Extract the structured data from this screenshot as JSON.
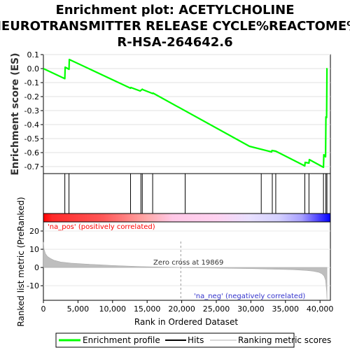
{
  "title_lines": [
    "Enrichment plot: ACETYLCHOLINE",
    "NEUROTRANSMITTER RELEASE CYCLE%REACTOME%",
    "R-HSA-264642.6"
  ],
  "colors": {
    "enrichment_line": "#00ff00",
    "hits": "#000000",
    "metric_fill": "#bebebe",
    "pos_label": "#ff0000",
    "neg_label": "#0000ff"
  },
  "chart_data": [
    {
      "id": "enrichment-profile",
      "type": "line",
      "ylabel": "Enrichment score (ES)",
      "ylim": [
        -0.75,
        0.1
      ],
      "yticks": [
        0.1,
        0.0,
        -0.1,
        -0.2,
        -0.3,
        -0.4,
        -0.5,
        -0.6,
        -0.7
      ],
      "ytick_labels": [
        "0.1",
        "0.0",
        "-0.1",
        "-0.2",
        "-0.3",
        "-0.4",
        "-0.5",
        "-0.6",
        "-0.7"
      ],
      "xlim": [
        0,
        41500
      ],
      "series": [
        {
          "name": "Enrichment profile",
          "x": [
            0,
            3100,
            3150,
            3700,
            3750,
            12600,
            12650,
            14000,
            14050,
            14300,
            14350,
            15800,
            15850,
            29800,
            33000,
            33050,
            33600,
            37800,
            37850,
            38400,
            38450,
            40500,
            40550,
            40800,
            40850,
            40900,
            40950,
            41000,
            41050
          ],
          "y": [
            0.0,
            -0.072,
            0.01,
            -0.005,
            0.065,
            -0.14,
            -0.135,
            -0.16,
            -0.158,
            -0.147,
            -0.15,
            -0.178,
            -0.175,
            -0.555,
            -0.595,
            -0.585,
            -0.59,
            -0.695,
            -0.67,
            -0.675,
            -0.65,
            -0.705,
            -0.615,
            -0.63,
            -0.345,
            -0.35,
            -0.35,
            0.0,
            0.0
          ]
        }
      ]
    },
    {
      "id": "hits",
      "type": "scatter",
      "series": [
        {
          "name": "Hits",
          "x": [
            3100,
            3700,
            12600,
            14100,
            14300,
            15800,
            20500,
            31500,
            33100,
            33600,
            37800,
            38400,
            40500,
            40850,
            41000
          ]
        }
      ]
    },
    {
      "id": "ranking-metric",
      "type": "area",
      "xlabel": "Rank in Ordered Dataset",
      "ylabel": "Ranked list metric (PreRanked)",
      "ylim": [
        -18,
        25
      ],
      "yticks": [
        20,
        10,
        0,
        -10
      ],
      "ytick_labels": [
        "20",
        "10",
        "0",
        "-10"
      ],
      "xlim": [
        0,
        41500
      ],
      "xticks": [
        0,
        5000,
        10000,
        15000,
        20000,
        25000,
        30000,
        35000,
        40000
      ],
      "xtick_labels": [
        "0",
        "5,000",
        "10,000",
        "15,000",
        "20,000",
        "25,000",
        "30,000",
        "35,000",
        "40,000"
      ],
      "series": [
        {
          "name": "Ranking metric scores",
          "x": [
            0,
            100,
            300,
            600,
            1000,
            1500,
            2500,
            4000,
            6000,
            8000,
            10000,
            12000,
            14000,
            16000,
            18000,
            19869,
            19870,
            22000,
            25000,
            28000,
            30000,
            32000,
            34000,
            36000,
            38000,
            39000,
            39800,
            40300,
            40600,
            40800,
            40950,
            41000
          ],
          "y": [
            14,
            10,
            7.5,
            6,
            5,
            4,
            3,
            2.4,
            1.9,
            1.5,
            1.1,
            0.8,
            0.5,
            0.3,
            0.15,
            0,
            -0.05,
            -0.2,
            -0.35,
            -0.5,
            -0.6,
            -0.8,
            -1.0,
            -1.2,
            -1.6,
            -2.0,
            -2.6,
            -3.5,
            -4.8,
            -7,
            -13,
            -17.5
          ]
        }
      ],
      "annotations": {
        "zero_cross": "Zero cross at 19869",
        "zero_cross_x": 19869,
        "pos_label": "'na_pos' (positively correlated)",
        "neg_label": "'na_neg' (negatively correlated)"
      }
    }
  ],
  "legend": {
    "placement": "bottom",
    "items": [
      {
        "label": "Enrichment profile",
        "color": "#00ff00"
      },
      {
        "label": "Hits",
        "color": "#000000"
      },
      {
        "label": "Ranking metric scores",
        "color": "#d8d8d8"
      }
    ]
  }
}
